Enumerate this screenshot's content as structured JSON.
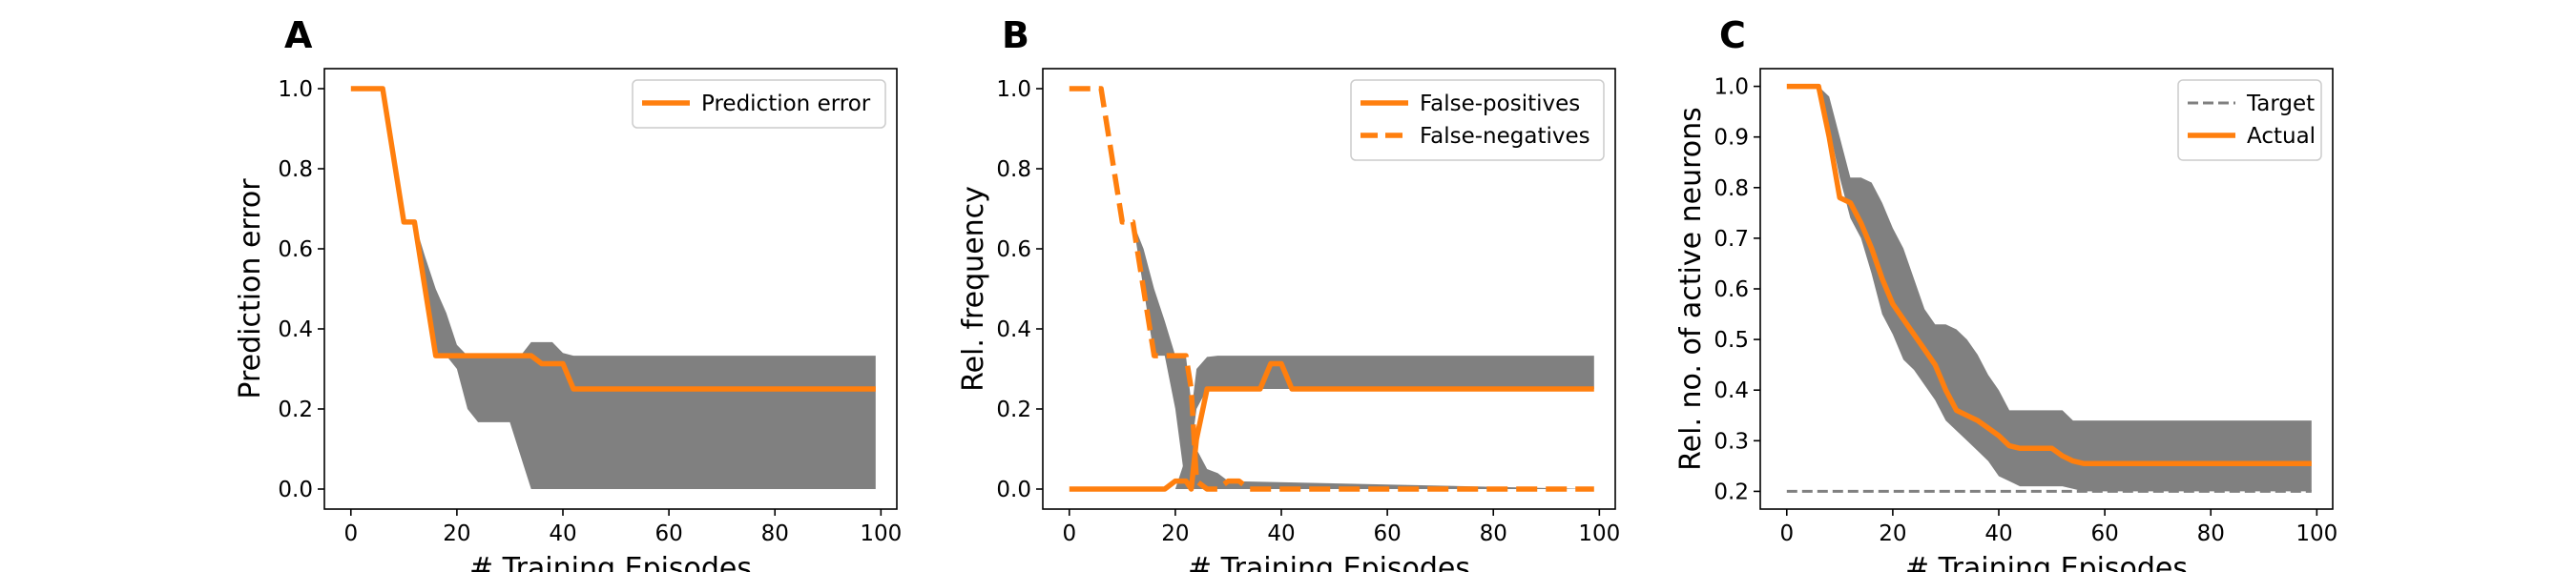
{
  "colors": {
    "orange": "#ff7f0e",
    "band": "#808080",
    "target": "#808080",
    "axis": "#000000"
  },
  "chart_data": [
    {
      "panel_label": "A",
      "type": "line",
      "title": "",
      "xlabel": "# Training Episodes",
      "ylabel": "Prediction error",
      "xlim": [
        -5,
        103
      ],
      "ylim": [
        -0.05,
        1.05
      ],
      "xticks": [
        0,
        20,
        40,
        60,
        80,
        100
      ],
      "yticks": [
        0.0,
        0.2,
        0.4,
        0.6,
        0.8,
        1.0
      ],
      "ytick_labels": [
        "0.0",
        "0.2",
        "0.4",
        "0.6",
        "0.8",
        "1.0"
      ],
      "legend_position": "top-right",
      "band": {
        "x": [
          0,
          6,
          10,
          12,
          14,
          16,
          18,
          20,
          22,
          24,
          26,
          28,
          30,
          32,
          34,
          36,
          38,
          40,
          42,
          99
        ],
        "lower": [
          1.0,
          1.0,
          0.667,
          0.667,
          0.5,
          0.333,
          0.333,
          0.3,
          0.2,
          0.167,
          0.167,
          0.167,
          0.167,
          0.083,
          0.0,
          0.0,
          0.0,
          0.0,
          0.0,
          0.0
        ],
        "upper": [
          1.0,
          1.0,
          0.667,
          0.667,
          0.58,
          0.5,
          0.44,
          0.36,
          0.333,
          0.333,
          0.333,
          0.333,
          0.333,
          0.333,
          0.367,
          0.367,
          0.367,
          0.34,
          0.333,
          0.333
        ]
      },
      "series": [
        {
          "name": "Prediction error",
          "style": "solid",
          "x": [
            0,
            6,
            10,
            12,
            16,
            18,
            34,
            36,
            40,
            42,
            99
          ],
          "y": [
            1.0,
            1.0,
            0.667,
            0.667,
            0.333,
            0.333,
            0.333,
            0.313,
            0.313,
            0.25,
            0.25
          ]
        }
      ]
    },
    {
      "panel_label": "B",
      "type": "line",
      "title": "",
      "xlabel": "# Training Episodes",
      "ylabel": "Rel. frequency",
      "xlim": [
        -5,
        103
      ],
      "ylim": [
        -0.05,
        1.05
      ],
      "xticks": [
        0,
        20,
        40,
        60,
        80,
        100
      ],
      "yticks": [
        0.0,
        0.2,
        0.4,
        0.6,
        0.8,
        1.0
      ],
      "ytick_labels": [
        "0.0",
        "0.2",
        "0.4",
        "0.6",
        "0.8",
        "1.0"
      ],
      "legend_position": "top-right",
      "band": {
        "x": [
          0,
          12,
          14,
          16,
          18,
          20,
          22,
          24,
          26,
          28,
          30,
          99
        ],
        "lower": [
          0.0,
          0.0,
          0.0,
          0.0,
          0.0,
          0.0,
          0.0,
          0.2,
          0.25,
          0.25,
          0.25,
          0.25
        ],
        "upper": [
          0.0,
          0.0,
          0.0,
          0.0,
          0.0,
          0.0,
          0.08,
          0.3,
          0.33,
          0.333,
          0.333,
          0.333
        ]
      },
      "band2": {
        "x": [
          0,
          12,
          14,
          16,
          18,
          20,
          22,
          24,
          26,
          28,
          30,
          99
        ],
        "lower": [
          1.0,
          0.667,
          0.5,
          0.333,
          0.333,
          0.2,
          0.0,
          0.0,
          0.0,
          0.0,
          0.0,
          0.0
        ],
        "upper": [
          1.0,
          0.667,
          0.6,
          0.5,
          0.42,
          0.333,
          0.333,
          0.1,
          0.05,
          0.04,
          0.02,
          0.0
        ]
      },
      "series": [
        {
          "name": "False-positives",
          "style": "solid",
          "x": [
            0,
            18,
            20,
            22,
            23,
            24,
            26,
            36,
            38,
            40,
            42,
            99
          ],
          "y": [
            0.0,
            0.0,
            0.02,
            0.02,
            0.0,
            0.125,
            0.25,
            0.25,
            0.313,
            0.313,
            0.25,
            0.25
          ]
        },
        {
          "name": "False-negatives",
          "style": "dashed",
          "x": [
            0,
            6,
            10,
            12,
            16,
            18,
            22,
            23,
            24,
            26,
            28,
            30,
            32,
            34,
            99
          ],
          "y": [
            1.0,
            1.0,
            0.667,
            0.667,
            0.333,
            0.333,
            0.333,
            0.25,
            0.02,
            0.0,
            0.0,
            0.02,
            0.02,
            0.0,
            0.0
          ]
        }
      ]
    },
    {
      "panel_label": "C",
      "type": "line",
      "title": "",
      "xlabel": "# Training Episodes",
      "ylabel": "Rel. no. of active neurons",
      "xlim": [
        -5,
        103
      ],
      "ylim": [
        0.165,
        1.035
      ],
      "xticks": [
        0,
        20,
        40,
        60,
        80,
        100
      ],
      "yticks": [
        0.2,
        0.3,
        0.4,
        0.5,
        0.6,
        0.7,
        0.8,
        0.9,
        1.0
      ],
      "ytick_labels": [
        "0.2",
        "0.3",
        "0.4",
        "0.5",
        "0.6",
        "0.7",
        "0.8",
        "0.9",
        "1.0"
      ],
      "legend_position": "top-right",
      "band": {
        "x": [
          0,
          6,
          8,
          10,
          12,
          14,
          16,
          18,
          20,
          22,
          24,
          26,
          28,
          30,
          32,
          34,
          36,
          38,
          40,
          42,
          44,
          46,
          48,
          50,
          52,
          54,
          56,
          58,
          99
        ],
        "lower": [
          1.0,
          1.0,
          0.92,
          0.82,
          0.74,
          0.7,
          0.63,
          0.55,
          0.51,
          0.46,
          0.44,
          0.41,
          0.38,
          0.34,
          0.32,
          0.3,
          0.28,
          0.26,
          0.23,
          0.22,
          0.21,
          0.21,
          0.21,
          0.21,
          0.21,
          0.205,
          0.2,
          0.2,
          0.2
        ],
        "upper": [
          1.0,
          1.0,
          0.98,
          0.9,
          0.82,
          0.82,
          0.81,
          0.77,
          0.72,
          0.68,
          0.62,
          0.56,
          0.53,
          0.53,
          0.52,
          0.5,
          0.47,
          0.43,
          0.4,
          0.36,
          0.36,
          0.36,
          0.36,
          0.36,
          0.36,
          0.34,
          0.34,
          0.34,
          0.34
        ]
      },
      "series": [
        {
          "name": "Target",
          "style": "dashed-thin",
          "x": [
            0,
            99
          ],
          "y": [
            0.2,
            0.2
          ]
        },
        {
          "name": "Actual",
          "style": "solid",
          "x": [
            0,
            6,
            8,
            10,
            12,
            14,
            16,
            18,
            20,
            22,
            24,
            26,
            28,
            30,
            32,
            34,
            36,
            38,
            40,
            42,
            44,
            46,
            48,
            50,
            52,
            54,
            56,
            58,
            99
          ],
          "y": [
            1.0,
            1.0,
            0.9,
            0.78,
            0.77,
            0.73,
            0.68,
            0.62,
            0.57,
            0.54,
            0.51,
            0.48,
            0.45,
            0.4,
            0.36,
            0.35,
            0.34,
            0.325,
            0.31,
            0.29,
            0.285,
            0.285,
            0.285,
            0.285,
            0.27,
            0.26,
            0.255,
            0.255,
            0.255
          ]
        }
      ]
    }
  ]
}
